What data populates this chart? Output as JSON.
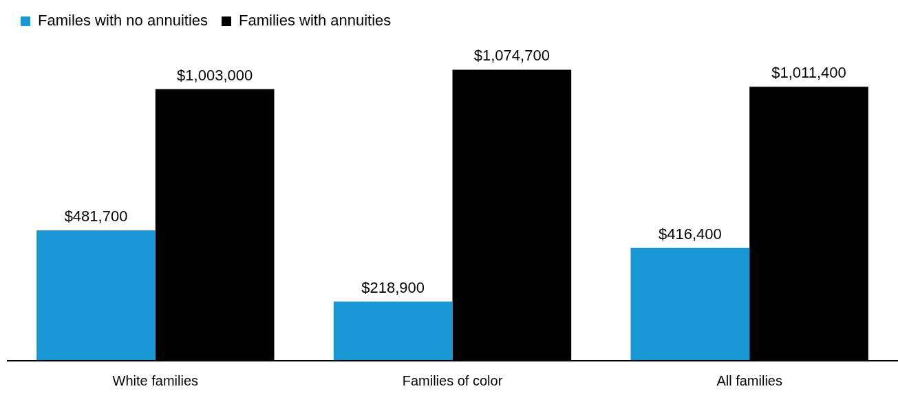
{
  "chart_data": {
    "type": "bar",
    "categories": [
      "White families",
      "Families of color",
      "All families"
    ],
    "series": [
      {
        "name": "Familes with no annuities",
        "color": "#1996d4",
        "values": [
          481700,
          218900,
          416400
        ],
        "value_labels": [
          "$481,700",
          "$218,900",
          "$416,400"
        ]
      },
      {
        "name": "Families with annuities",
        "color": "#000000",
        "values": [
          1003000,
          1074700,
          1011400
        ],
        "value_labels": [
          "$1,003,000",
          "$1,074,700",
          "$1,011,400"
        ]
      }
    ],
    "legend": "top left",
    "grid": false
  }
}
